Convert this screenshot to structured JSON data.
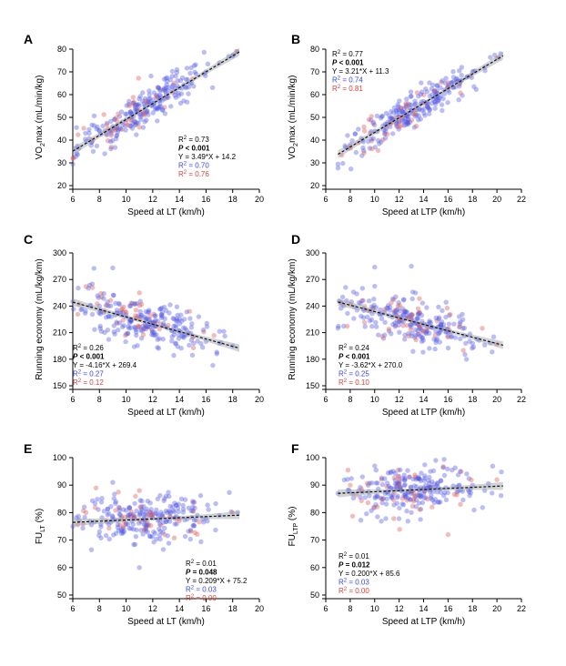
{
  "colors": {
    "blue": "#3a46e0",
    "red": "#d9433b",
    "black": "#000000"
  },
  "chart_data": [
    {
      "type": "scatter",
      "id": "A",
      "panel_label": "A",
      "xlabel": "Speed at LT (km/h)",
      "ylabel": "VO₂max (mL/min/kg)",
      "xlim": [
        6,
        20
      ],
      "ylim": [
        20,
        80
      ],
      "xticks": [
        "6",
        "8",
        "10",
        "12",
        "14",
        "16",
        "18",
        "20"
      ],
      "yticks": [
        "20",
        "30",
        "40",
        "50",
        "60",
        "70",
        "80"
      ],
      "fit": {
        "slope": 3.49,
        "intercept": 14.2,
        "x_range": [
          6,
          18.5
        ]
      },
      "stats": {
        "r2": "R² = 0.73",
        "p": "P < 0.001",
        "eq": "Y = 3.49*X + 14.2",
        "r2_blue": "R² = 0.70",
        "r2_red": "R² = 0.76"
      },
      "sample_points": [
        [
          6,
          29.5
        ],
        [
          7.5,
          40
        ],
        [
          8,
          44
        ],
        [
          9,
          46
        ],
        [
          10,
          49
        ],
        [
          11,
          53
        ],
        [
          12,
          56
        ],
        [
          13,
          60
        ],
        [
          14,
          63
        ],
        [
          15,
          67
        ],
        [
          16,
          70
        ],
        [
          17,
          74
        ],
        [
          18,
          77
        ],
        [
          18.3,
          79
        ]
      ]
    },
    {
      "type": "scatter",
      "id": "B",
      "panel_label": "B",
      "xlabel": "Speed at LTP (km/h)",
      "ylabel": "VO₂max (mL/min/kg)",
      "xlim": [
        6,
        22
      ],
      "ylim": [
        20,
        80
      ],
      "xticks": [
        "6",
        "8",
        "10",
        "12",
        "14",
        "16",
        "18",
        "20",
        "22"
      ],
      "yticks": [
        "20",
        "30",
        "40",
        "50",
        "60",
        "70",
        "80"
      ],
      "fit": {
        "slope": 3.21,
        "intercept": 11.3,
        "x_range": [
          7,
          20.5
        ]
      },
      "stats": {
        "r2": "R² = 0.77",
        "p": "P < 0.001",
        "eq": "Y = 3.21*X + 11.3",
        "r2_blue": "R² = 0.74",
        "r2_red": "R² = 0.81"
      },
      "sample_points": [
        [
          7,
          29.5
        ],
        [
          8,
          37
        ],
        [
          9,
          40
        ],
        [
          10,
          44
        ],
        [
          11,
          47
        ],
        [
          12,
          50
        ],
        [
          13,
          53
        ],
        [
          14,
          57
        ],
        [
          15,
          60
        ],
        [
          16,
          63
        ],
        [
          17,
          66
        ],
        [
          18,
          70
        ],
        [
          19,
          72
        ],
        [
          20,
          76
        ],
        [
          20.3,
          78
        ]
      ]
    },
    {
      "type": "scatter",
      "id": "C",
      "panel_label": "C",
      "xlabel": "Speed at LT (km/h)",
      "ylabel": "Running economy (mL/kg/km)",
      "xlim": [
        6,
        20
      ],
      "ylim": [
        150,
        300
      ],
      "xticks": [
        "6",
        "8",
        "10",
        "12",
        "14",
        "16",
        "18",
        "20"
      ],
      "yticks": [
        "150",
        "180",
        "210",
        "240",
        "270",
        "300"
      ],
      "fit": {
        "slope": -4.16,
        "intercept": 269.4,
        "x_range": [
          6,
          18.5
        ]
      },
      "stats": {
        "r2": "R² = 0.26",
        "p": "P < 0.001",
        "eq": "Y = -4.16*X + 269.4",
        "r2_blue": "R² = 0.27",
        "r2_red": "R² = 0.12"
      },
      "sample_points": [
        [
          6,
          245
        ],
        [
          7,
          262
        ],
        [
          8,
          240
        ],
        [
          9,
          283
        ],
        [
          10,
          230
        ],
        [
          11,
          255
        ],
        [
          12,
          222
        ],
        [
          13,
          235
        ],
        [
          14,
          212
        ],
        [
          15,
          205
        ],
        [
          16,
          200
        ],
        [
          17,
          198
        ],
        [
          18,
          195
        ]
      ]
    },
    {
      "type": "scatter",
      "id": "D",
      "panel_label": "D",
      "xlabel": "Speed at LTP (km/h)",
      "ylabel": "Running economy (mL/kg/km)",
      "xlim": [
        6,
        22
      ],
      "ylim": [
        150,
        300
      ],
      "xticks": [
        "6",
        "8",
        "10",
        "12",
        "14",
        "16",
        "18",
        "20",
        "22"
      ],
      "yticks": [
        "150",
        "180",
        "210",
        "240",
        "270",
        "300"
      ],
      "fit": {
        "slope": -3.62,
        "intercept": 270.0,
        "x_range": [
          7,
          20.5
        ]
      },
      "stats": {
        "r2": "R² = 0.24",
        "p": "P < 0.001",
        "eq": "Y = -3.62*X + 270.0",
        "r2_blue": "R² = 0.25",
        "r2_red": "R² = 0.10"
      },
      "sample_points": [
        [
          7,
          215
        ],
        [
          8,
          242
        ],
        [
          9,
          260
        ],
        [
          10,
          284
        ],
        [
          11,
          238
        ],
        [
          12,
          226
        ],
        [
          13,
          285
        ],
        [
          14,
          220
        ],
        [
          15,
          212
        ],
        [
          16,
          205
        ],
        [
          17,
          203
        ],
        [
          18,
          198
        ],
        [
          19,
          196
        ],
        [
          20,
          197
        ]
      ]
    },
    {
      "type": "scatter",
      "id": "E",
      "panel_label": "E",
      "xlabel": "Speed at LT (km/h)",
      "ylabel": "FU_LT (%)",
      "xlim": [
        6,
        20
      ],
      "ylim": [
        50,
        100
      ],
      "xticks": [
        "6",
        "8",
        "10",
        "12",
        "14",
        "16",
        "18",
        "20"
      ],
      "yticks": [
        "50",
        "60",
        "70",
        "80",
        "90",
        "100"
      ],
      "fit": {
        "slope": 0.209,
        "intercept": 75.2,
        "x_range": [
          6,
          18.5
        ]
      },
      "stats": {
        "r2": "R² = 0.01",
        "p": "P = 0.048",
        "eq": "Y = 0.209*X + 75.2",
        "r2_blue": "R² = 0.03",
        "r2_red": "R² = 0.00"
      },
      "sample_points": [
        [
          6,
          75
        ],
        [
          7,
          80
        ],
        [
          8,
          73
        ],
        [
          9,
          91
        ],
        [
          10,
          76
        ],
        [
          11,
          88
        ],
        [
          11,
          60
        ],
        [
          12,
          78
        ],
        [
          13,
          86
        ],
        [
          14,
          77
        ],
        [
          15,
          82
        ],
        [
          16,
          78
        ],
        [
          17,
          79
        ],
        [
          18,
          80
        ]
      ]
    },
    {
      "type": "scatter",
      "id": "F",
      "panel_label": "F",
      "xlabel": "Speed at LTP (km/h)",
      "ylabel": "FU_LTP (%)",
      "xlim": [
        6,
        22
      ],
      "ylim": [
        50,
        100
      ],
      "xticks": [
        "6",
        "8",
        "10",
        "12",
        "14",
        "16",
        "18",
        "20",
        "22"
      ],
      "yticks": [
        "50",
        "60",
        "70",
        "80",
        "90",
        "100"
      ],
      "fit": {
        "slope": 0.2,
        "intercept": 85.6,
        "x_range": [
          7,
          20.5
        ]
      },
      "stats": {
        "r2": "R² = 0.01",
        "p": "P = 0.012",
        "eq": "Y = 0.200*X + 85.6",
        "r2_blue": "R² = 0.03",
        "r2_red": "R² = 0.00"
      },
      "sample_points": [
        [
          7,
          87
        ],
        [
          8,
          90
        ],
        [
          9,
          93
        ],
        [
          10,
          97
        ],
        [
          11,
          85
        ],
        [
          12,
          92
        ],
        [
          13,
          80
        ],
        [
          14,
          89
        ],
        [
          15,
          99
        ],
        [
          16,
          72
        ],
        [
          17,
          95
        ],
        [
          18,
          90
        ],
        [
          19,
          88
        ],
        [
          20,
          92
        ]
      ]
    }
  ]
}
